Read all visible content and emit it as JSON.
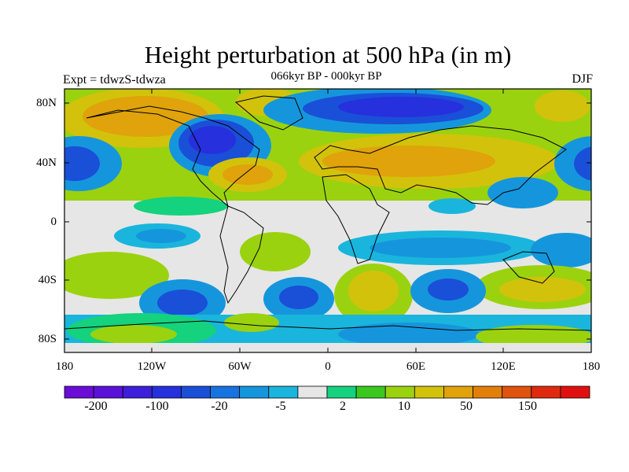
{
  "title": "Height perturbation at 500 hPa (in m)",
  "subtitle": "066kyr BP - 000kyr BP",
  "left_label": "Expt = tdwzS-tdwza",
  "right_label": "DJF",
  "lat_ticks": [
    "80N",
    "40N",
    "0",
    "40S",
    "80S"
  ],
  "lon_ticks": [
    "180",
    "120W",
    "60W",
    "0",
    "60E",
    "120E",
    "180"
  ],
  "colorbar": {
    "colors": [
      "#6a0dd6",
      "#5b12d8",
      "#3d1fdb",
      "#2630dc",
      "#1a4fd8",
      "#1773e0",
      "#1596dc",
      "#1ab5dc",
      "#e6e6e6",
      "#14d27d",
      "#3ac81f",
      "#9bd20f",
      "#d2c20b",
      "#e0a30b",
      "#e27f0b",
      "#e0530e",
      "#df2a10",
      "#e01010"
    ],
    "labels": [
      "-200",
      "-100",
      "-20",
      "-5",
      "2",
      "10",
      "50",
      "150"
    ]
  }
}
